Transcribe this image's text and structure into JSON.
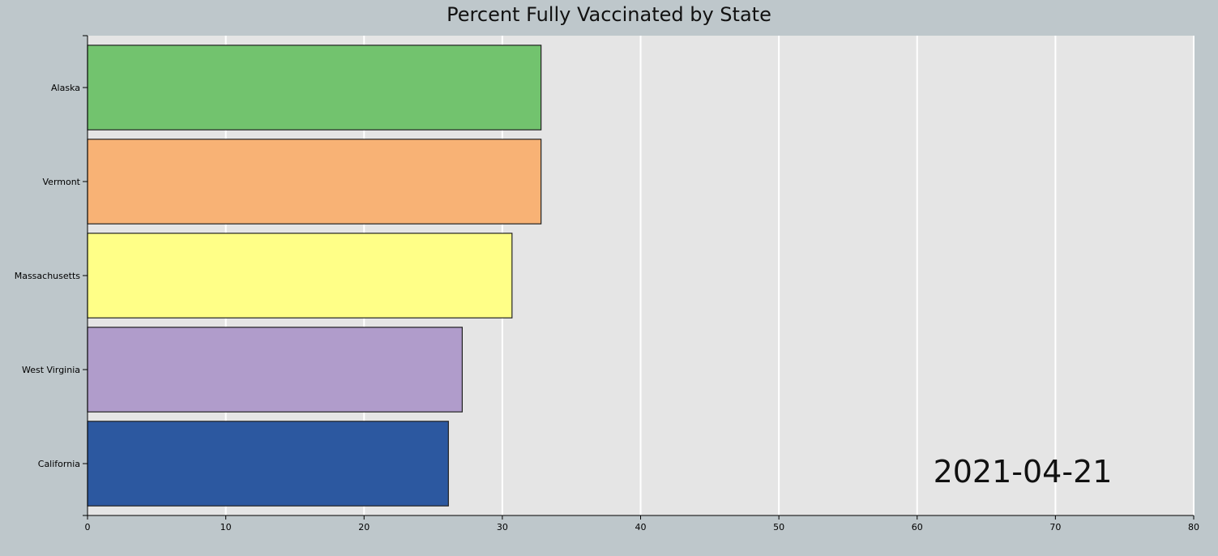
{
  "chart_data": {
    "type": "bar",
    "orientation": "horizontal",
    "title": "Percent Fully Vaccinated by State",
    "date": "2021-04-21",
    "categories": [
      "Alaska",
      "Vermont",
      "Massachusetts",
      "West Virginia",
      "California"
    ],
    "values": [
      32.8,
      32.8,
      30.7,
      27.1,
      26.1
    ],
    "colors": [
      "#72c36e",
      "#f8b275",
      "#ffff87",
      "#b09ccb",
      "#2c58a0"
    ],
    "xlim": [
      0,
      80
    ],
    "xticks": [
      0,
      10,
      20,
      30,
      40,
      50,
      60,
      70,
      80
    ],
    "xlabel": "",
    "ylabel": "",
    "grid": true,
    "plot_background": "#e5e5e5",
    "background": "#bec7cb"
  }
}
